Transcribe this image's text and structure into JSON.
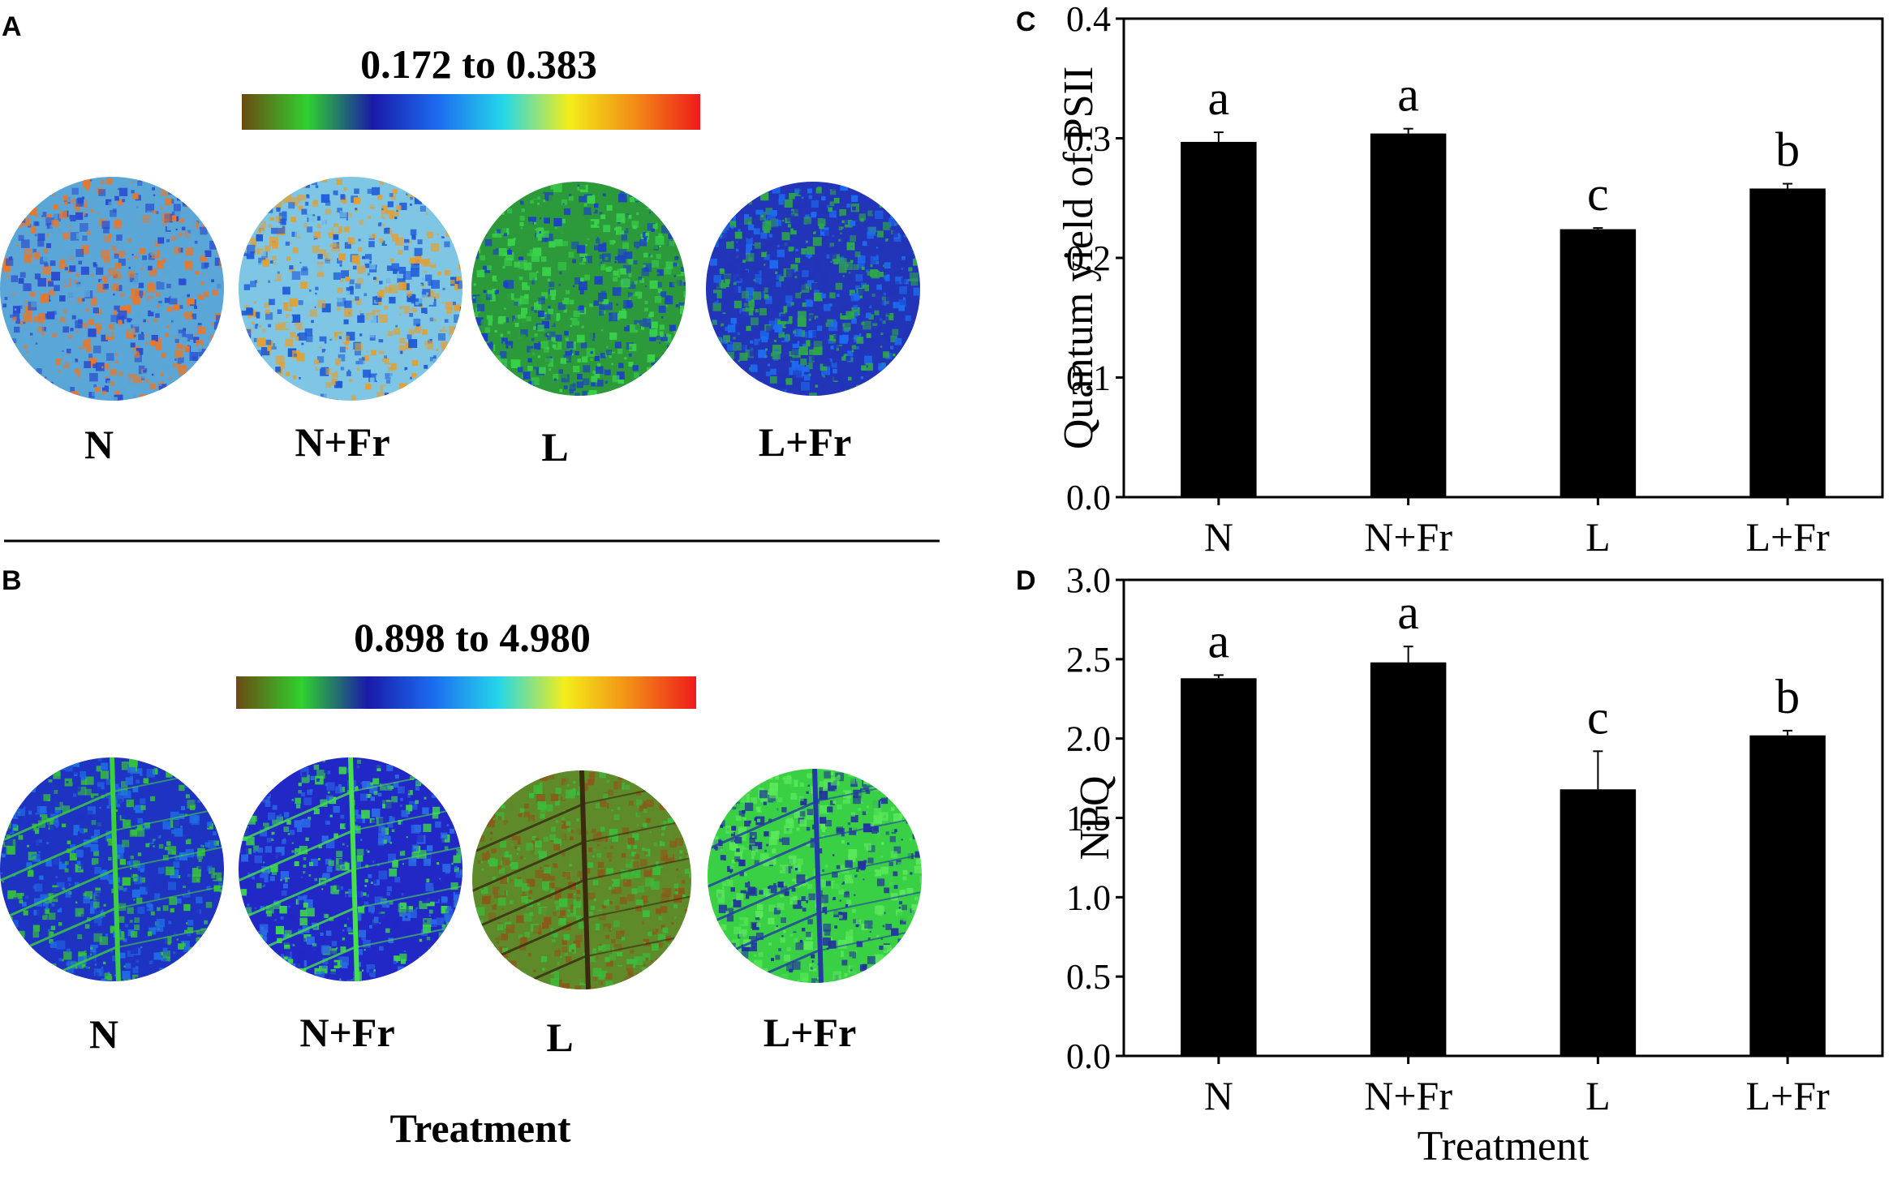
{
  "left": {
    "panel_a": {
      "letter": "A",
      "range_title": "0.172 to 0.383",
      "colorbar_colors": [
        "#6b4a12",
        "#2fd12f",
        "#1a1aa8",
        "#1c6cf0",
        "#25d7e9",
        "#f3ee1a",
        "#f28c16",
        "#ee1b1b"
      ],
      "leaves": [
        {
          "label": "N",
          "base": "#5aa6d6",
          "accent": "#e8782a",
          "accent2": "#2a4dd0"
        },
        {
          "label": "N+Fr",
          "base": "#7ec6e4",
          "accent": "#1e5ad8",
          "accent2": "#e2a033"
        },
        {
          "label": "L",
          "base": "#2c9a3a",
          "accent": "#1c3fc8",
          "accent2": "#39d24a"
        },
        {
          "label": "L+Fr",
          "base": "#2234b8",
          "accent": "#1d6cf0",
          "accent2": "#2ea848"
        }
      ]
    },
    "panel_b": {
      "letter": "B",
      "range_title": "0.898 to 4.980",
      "colorbar_colors": [
        "#6b4a12",
        "#2fd12f",
        "#1a1aa8",
        "#1c6cf0",
        "#25d7e9",
        "#f3ee1a",
        "#f28c16",
        "#ee1b1b"
      ],
      "leaves": [
        {
          "label": "N",
          "base": "#1f33c2",
          "accent": "#1f6de6",
          "accent2": "#35c23a"
        },
        {
          "label": "N+Fr",
          "base": "#2228c6",
          "accent": "#2a6ae6",
          "accent2": "#3bd84a"
        },
        {
          "label": "L",
          "base": "#5e8a2a",
          "accent": "#8a5a1a",
          "accent2": "#3cbc3a"
        },
        {
          "label": "L+Fr",
          "base": "#3ad046",
          "accent": "#22309e",
          "accent2": "#5ae85a"
        }
      ],
      "xlabel": "Treatment"
    }
  },
  "chart_data": [
    {
      "type": "bar",
      "panel": "C",
      "categories": [
        "N",
        "N+Fr",
        "L",
        "L+Fr"
      ],
      "values": [
        0.297,
        0.304,
        0.224,
        0.258
      ],
      "errors": [
        0.008,
        0.004,
        0.001,
        0.004
      ],
      "significance": [
        "a",
        "a",
        "c",
        "b"
      ],
      "title": "",
      "xlabel": "",
      "ylabel": "Quantum yield of PSII",
      "ylim": [
        0,
        0.4
      ],
      "yticks": [
        "0.0",
        "0.1",
        "0.2",
        "0.3",
        "0.4"
      ],
      "ytick_values": [
        0,
        0.1,
        0.2,
        0.3,
        0.4
      ],
      "bar_color": "#000000"
    },
    {
      "type": "bar",
      "panel": "D",
      "categories": [
        "N",
        "N+Fr",
        "L",
        "L+Fr"
      ],
      "values": [
        2.38,
        2.48,
        1.68,
        2.02
      ],
      "errors": [
        0.02,
        0.1,
        0.24,
        0.03
      ],
      "significance": [
        "a",
        "a",
        "c",
        "b"
      ],
      "title": "",
      "xlabel": "Treatment",
      "ylabel": "NPQ",
      "ylim": [
        0,
        3.0
      ],
      "yticks": [
        "0.0",
        "0.5",
        "1.0",
        "1.5",
        "2.0",
        "2.5",
        "3.0"
      ],
      "ytick_values": [
        0,
        0.5,
        1.0,
        1.5,
        2.0,
        2.5,
        3.0
      ],
      "bar_color": "#000000"
    }
  ]
}
